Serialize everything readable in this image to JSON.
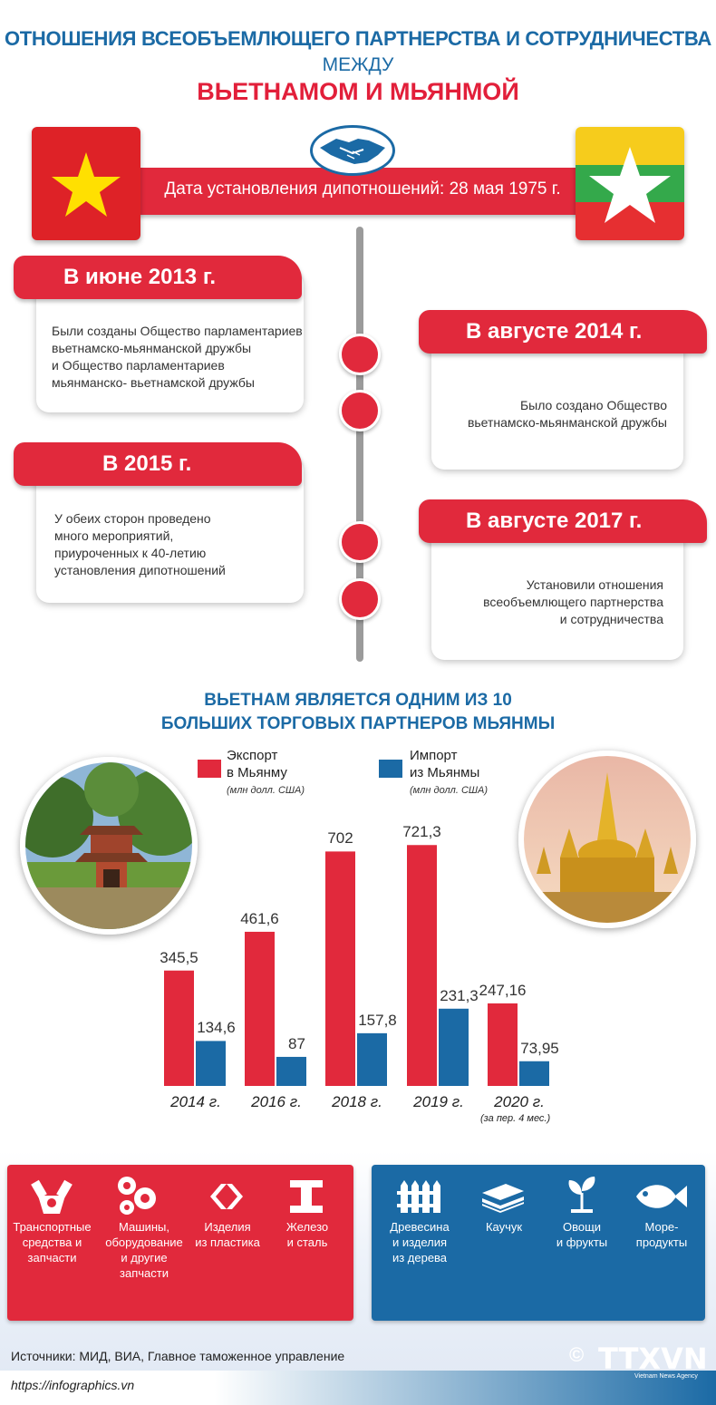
{
  "header": {
    "title_line1": "ОТНОШЕНИЯ ВСЕОБЪЕМЛЮЩЕГО ПАРТНЕРСТВА И СОТРУДНИЧЕСТВА",
    "title_line2": "МЕЖДУ",
    "title_line3": "ВЬЕТНАМОМ И МЬЯНМОЙ"
  },
  "ribbon": {
    "text": "Дата установления дипотношений: 28 мая 1975 г."
  },
  "timeline": [
    {
      "title": "В июне 2013 г.",
      "text": [
        "Были созданы Общество парламентариев",
        "вьетнамско-мьянманской дружбы",
        "и Общество парламентариев",
        "мьянманско- вьетнамской дружбы"
      ]
    },
    {
      "title": "В августе 2014 г.",
      "text": [
        "Было создано Общество",
        "вьетнамско-мьянманской дружбы"
      ]
    },
    {
      "title": "В 2015 г.",
      "text": [
        "У обеих сторон проведено",
        "много мероприятий,",
        "приуроченных к 40-летию",
        "установления дипотношений"
      ]
    },
    {
      "title": "В августе 2017 г.",
      "text": [
        "Установили отношения",
        "всеобъемлющего партнерства",
        "и сотрудничества"
      ]
    }
  ],
  "trade": {
    "title_line1": "ВЬЕТНАМ ЯВЛЯЕТСЯ ОДНИМ ИЗ 10",
    "title_line2": "БОЛЬШИХ ТОРГОВЫХ ПАРТНЕРОВ МЬЯНМЫ",
    "legend_export": [
      "Экспорт",
      "в Мьянму"
    ],
    "legend_import": [
      "Импорт",
      "из Мьянмы"
    ],
    "unit": "(млн долл. США)"
  },
  "chart_data": {
    "type": "bar",
    "categories": [
      "2014 г.",
      "2016 г.",
      "2018 г.",
      "2019 г.",
      "2020 г."
    ],
    "category_note": "(за пер. 4 мес.)",
    "series": [
      {
        "name": "Экспорт в Мьянму",
        "color": "#e1293c",
        "values": [
          345.5,
          461.6,
          702,
          721.3,
          247.16
        ],
        "labels": [
          "345,5",
          "461,6",
          "702",
          "721,3",
          "247,16"
        ]
      },
      {
        "name": "Импорт из Мьянмы",
        "color": "#1b6aa5",
        "values": [
          134.6,
          87,
          157.8,
          231.3,
          73.95
        ],
        "labels": [
          "134,6",
          "87",
          "157,8",
          "231,3",
          "73,95"
        ]
      }
    ],
    "ylim": [
      0,
      760
    ]
  },
  "exports": [
    {
      "label": [
        "Транспортные",
        "средства и",
        "запчасти"
      ],
      "icon": "engine-icon"
    },
    {
      "label": [
        "Машины,",
        "оборудование",
        "и другие",
        "запчасти"
      ],
      "icon": "gears-icon"
    },
    {
      "label": [
        "Изделия",
        "из пластика"
      ],
      "icon": "plastic-icon"
    },
    {
      "label": [
        "Железо",
        "и сталь"
      ],
      "icon": "steel-beam-icon"
    }
  ],
  "imports": [
    {
      "label": [
        "Древесина",
        "и изделия",
        "из дерева"
      ],
      "icon": "wood-fence-icon"
    },
    {
      "label": [
        "Каучук"
      ],
      "icon": "rubber-icon"
    },
    {
      "label": [
        "Овощи",
        "и фрукты"
      ],
      "icon": "sprout-icon"
    },
    {
      "label": [
        "Море-",
        "продукты"
      ],
      "icon": "fish-icon"
    }
  ],
  "footer": {
    "sources": "Источники: МИД, ВИА, Главное таможенное управление",
    "url": "https://infographics.vn",
    "copyright": "©",
    "logo": "TTXVN",
    "logo_sub": "Vietnam News Agency"
  }
}
